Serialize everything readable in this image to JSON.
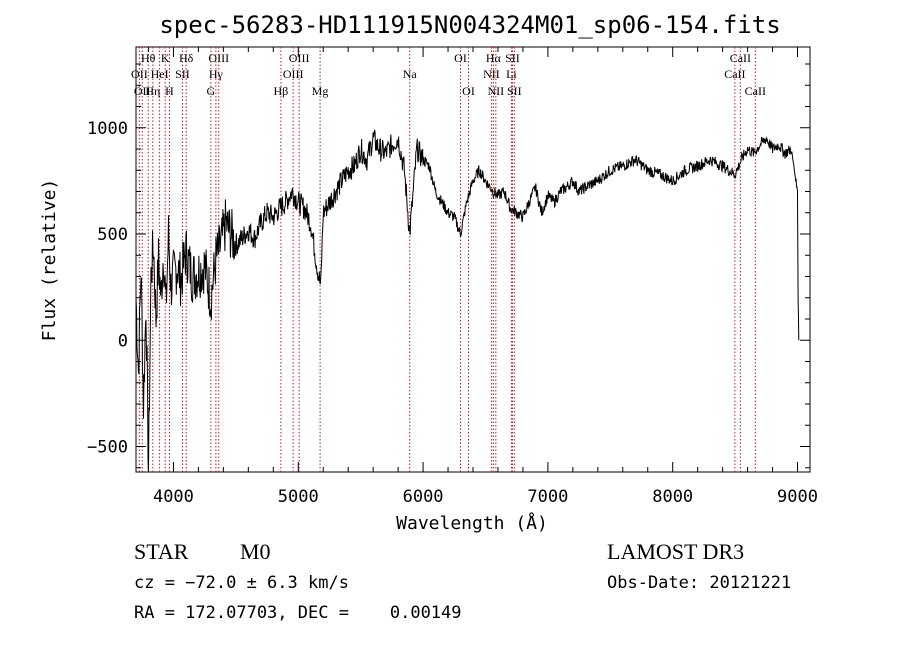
{
  "chart_data": {
    "type": "line",
    "title": "spec-56283-HD111915N004324M01_sp06-154.fits",
    "xlabel": "Wavelength (Å)",
    "ylabel": "Flux (relative)",
    "xlim": [
      3700,
      9100
    ],
    "ylim": [
      -620,
      1380
    ],
    "xticks": [
      4000,
      5000,
      6000,
      7000,
      8000,
      9000
    ],
    "xtick_labels": [
      "4000",
      "5000",
      "6000",
      "7000",
      "8000",
      "9000"
    ],
    "yticks": [
      -500,
      0,
      500,
      1000
    ],
    "ytick_labels": [
      "−500",
      "0",
      "500",
      "1000"
    ],
    "grid": false,
    "legend": "none",
    "line_color": "#000000",
    "marker_color": "#b22222",
    "series": [
      {
        "x": [
          3700,
          3720,
          3740,
          3760,
          3780,
          3800,
          3820,
          3840,
          3860,
          3880,
          3900,
          3920,
          3940,
          3960,
          3980,
          4000,
          4030,
          4060,
          4100,
          4150,
          4200,
          4250,
          4300,
          4340,
          4380,
          4420,
          4460,
          4500,
          4550,
          4600,
          4650,
          4700,
          4750,
          4800,
          4850,
          4900,
          4950,
          5000,
          5050,
          5100,
          5150,
          5180,
          5200,
          5250,
          5300,
          5350,
          5400,
          5450,
          5500,
          5550,
          5600,
          5650,
          5700,
          5750,
          5800,
          5850,
          5893,
          5950,
          6000,
          6050,
          6100,
          6150,
          6200,
          6250,
          6300,
          6350,
          6400,
          6450,
          6500,
          6563,
          6600,
          6650,
          6700,
          6750,
          6800,
          6850,
          6900,
          6950,
          7000,
          7050,
          7100,
          7150,
          7200,
          7250,
          7300,
          7400,
          7500,
          7600,
          7700,
          7800,
          7900,
          8000,
          8100,
          8200,
          8300,
          8400,
          8500,
          8550,
          8600,
          8650,
          8700,
          8750,
          8800,
          8850,
          8900,
          8950,
          9000,
          9005,
          9010
        ],
        "y": [
          200,
          -150,
          350,
          -300,
          180,
          -620,
          300,
          450,
          100,
          380,
          200,
          420,
          150,
          500,
          250,
          300,
          350,
          280,
          420,
          300,
          320,
          350,
          200,
          380,
          450,
          550,
          500,
          450,
          480,
          520,
          480,
          550,
          600,
          580,
          620,
          650,
          700,
          650,
          620,
          550,
          350,
          250,
          600,
          650,
          700,
          750,
          800,
          820,
          900,
          850,
          950,
          900,
          880,
          920,
          950,
          800,
          500,
          900,
          850,
          820,
          700,
          650,
          600,
          580,
          500,
          650,
          750,
          800,
          750,
          700,
          680,
          700,
          620,
          600,
          580,
          650,
          720,
          600,
          680,
          650,
          700,
          720,
          750,
          700,
          720,
          750,
          800,
          820,
          850,
          800,
          780,
          750,
          800,
          820,
          850,
          820,
          780,
          850,
          900,
          880,
          920,
          950,
          900,
          920,
          880,
          900,
          700,
          200,
          0
        ]
      }
    ],
    "line_markers": [
      {
        "x": 3727,
        "label": "OII",
        "row": 2
      },
      {
        "x": 3750,
        "label": "OII",
        "row": 3
      },
      {
        "x": 3798,
        "label": "Hθ",
        "row": 1
      },
      {
        "x": 3835,
        "label": "Hη",
        "row": 3
      },
      {
        "x": 3889,
        "label": "HeI",
        "row": 2
      },
      {
        "x": 3934,
        "label": "K",
        "row": 1
      },
      {
        "x": 3968,
        "label": "H",
        "row": 3
      },
      {
        "x": 4072,
        "label": "SII",
        "row": 2
      },
      {
        "x": 4102,
        "label": "Hδ",
        "row": 1
      },
      {
        "x": 4340,
        "label": "Hγ",
        "row": 2
      },
      {
        "x": 4300,
        "label": "G",
        "row": 3
      },
      {
        "x": 4363,
        "label": "OIII",
        "row": 1
      },
      {
        "x": 4861,
        "label": "Hβ",
        "row": 3
      },
      {
        "x": 4959,
        "label": "OIII",
        "row": 2
      },
      {
        "x": 5007,
        "label": "OIII",
        "row": 1
      },
      {
        "x": 5175,
        "label": "Mg",
        "row": 3
      },
      {
        "x": 5893,
        "label": "Na",
        "row": 2
      },
      {
        "x": 6300,
        "label": "OI",
        "row": 1
      },
      {
        "x": 6364,
        "label": "OI",
        "row": 3
      },
      {
        "x": 6548,
        "label": "NII",
        "row": 2
      },
      {
        "x": 6563,
        "label": "Hα",
        "row": 1
      },
      {
        "x": 6583,
        "label": "NII",
        "row": 3
      },
      {
        "x": 6708,
        "label": "Li",
        "row": 2
      },
      {
        "x": 6716,
        "label": "SII",
        "row": 1
      },
      {
        "x": 6731,
        "label": "SII",
        "row": 3
      },
      {
        "x": 8498,
        "label": "CaII",
        "row": 2
      },
      {
        "x": 8542,
        "label": "CaII",
        "row": 1
      },
      {
        "x": 8662,
        "label": "CaII",
        "row": 3
      }
    ]
  },
  "info": {
    "class": "STAR",
    "subclass": "M0",
    "cz": "cz = −72.0 ± 6.3 km/s",
    "radec": "RA = 172.07703, DEC =    0.00149",
    "survey": "LAMOST DR3",
    "obsdate": "Obs-Date: 20121221"
  }
}
